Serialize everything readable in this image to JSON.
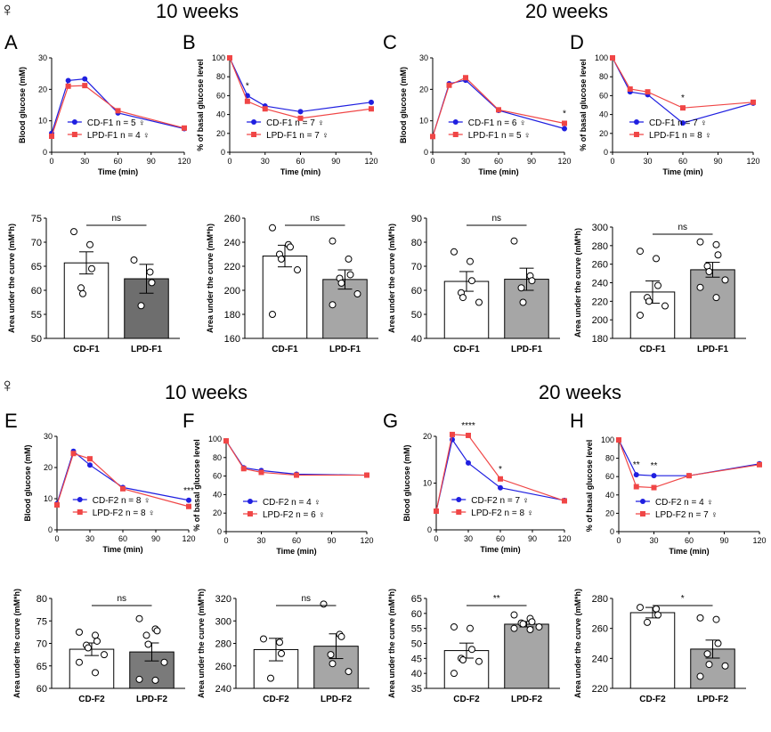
{
  "section_titles": {
    "top_left": "10 weeks",
    "top_right": "20 weeks",
    "bottom_left": "10 weeks",
    "bottom_right": "20 weeks",
    "sex_symbol": "♀"
  },
  "colors": {
    "cd": "#1f1fe0",
    "lpd": "#f04646",
    "bar_cd": "#ffffff",
    "bar_lpd_F1A": "#6e6e6e",
    "bar_lpd_other": "#a6a6a6",
    "bar_lpd_F2A": "#7a7a7a"
  },
  "chart_data": [
    {
      "id": "A",
      "letter": "A",
      "type": "line",
      "xlabel": "Time (min)",
      "ylabel": "Blood glucose (mM)",
      "x": [
        0,
        15,
        30,
        60,
        120
      ],
      "xticks": [
        0,
        30,
        60,
        90,
        120
      ],
      "ylim": [
        0,
        30
      ],
      "yticks": [
        0,
        10,
        20,
        30
      ],
      "series": [
        {
          "name": "CD-F1",
          "n": "n = 5 ♀",
          "values": [
            6.0,
            22.8,
            23.3,
            12.5,
            7.5
          ]
        },
        {
          "name": "LPD-F1",
          "n": "n = 4 ♀",
          "values": [
            5.1,
            21.0,
            21.2,
            13.2,
            7.7
          ]
        }
      ],
      "annotations": [],
      "legend": "bottom"
    },
    {
      "id": "B",
      "letter": "B",
      "type": "line",
      "xlabel": "Time (min)",
      "ylabel": "% of basal glucose level",
      "x": [
        0,
        15,
        30,
        60,
        120
      ],
      "xticks": [
        0,
        30,
        60,
        90,
        120
      ],
      "ylim": [
        0,
        100
      ],
      "yticks": [
        0,
        20,
        40,
        60,
        80,
        100
      ],
      "series": [
        {
          "name": "CD-F1",
          "n": "n = 7 ♀",
          "values": [
            100,
            60,
            49,
            43,
            53
          ]
        },
        {
          "name": "LPD-F1",
          "n": "n = 7 ♀",
          "values": [
            100,
            54,
            46,
            36,
            46
          ]
        }
      ],
      "annotations": [
        {
          "x": 15,
          "text": "*"
        }
      ],
      "legend": "bottom"
    },
    {
      "id": "C",
      "letter": "C",
      "type": "line",
      "xlabel": "Time (min)",
      "ylabel": "Blood glucose (mM)",
      "x": [
        0,
        15,
        30,
        60,
        120
      ],
      "xticks": [
        0,
        30,
        60,
        90,
        120
      ],
      "ylim": [
        0,
        30
      ],
      "yticks": [
        0,
        10,
        20,
        30
      ],
      "series": [
        {
          "name": "CD-F1",
          "n": "n = 6 ♀",
          "values": [
            5.0,
            21.8,
            22.9,
            13.3,
            7.5
          ]
        },
        {
          "name": "LPD-F1",
          "n": "n = 5 ♀",
          "values": [
            5.0,
            21.3,
            23.7,
            13.5,
            9.2
          ]
        }
      ],
      "annotations": [
        {
          "x": 120,
          "text": "*"
        }
      ],
      "legend": "bottom"
    },
    {
      "id": "D",
      "letter": "D",
      "type": "line",
      "xlabel": "Time (min)",
      "ylabel": "% of basal glucose level",
      "x": [
        0,
        15,
        30,
        60,
        120
      ],
      "xticks": [
        0,
        30,
        60,
        90,
        120
      ],
      "ylim": [
        0,
        100
      ],
      "yticks": [
        0,
        20,
        40,
        60,
        80,
        100
      ],
      "series": [
        {
          "name": "CD-F1",
          "n": "n = 7 ♀",
          "values": [
            100,
            64,
            61,
            31,
            52
          ]
        },
        {
          "name": "LPD-F1",
          "n": "n = 8 ♀",
          "values": [
            100,
            67,
            64,
            47,
            53
          ]
        }
      ],
      "annotations": [
        {
          "x": 60,
          "text": "*"
        }
      ],
      "legend": "bottom"
    },
    {
      "id": "E",
      "letter": "E",
      "type": "line",
      "xlabel": "Time (min)",
      "ylabel": "Blood glucose (mM)",
      "x": [
        0,
        15,
        30,
        60,
        120
      ],
      "xticks": [
        0,
        30,
        60,
        90,
        120
      ],
      "ylim": [
        0,
        30
      ],
      "yticks": [
        0,
        10,
        20,
        30
      ],
      "series": [
        {
          "name": "CD-F2",
          "n": "n = 8 ♀",
          "values": [
            8.4,
            25.2,
            20.8,
            13.6,
            9.5
          ]
        },
        {
          "name": "LPD-F2",
          "n": "n = 8 ♀",
          "values": [
            8.0,
            24.5,
            22.8,
            13.2,
            7.5
          ]
        }
      ],
      "annotations": [
        {
          "x": 120,
          "text": "***"
        }
      ],
      "legend": "bottom"
    },
    {
      "id": "F",
      "letter": "F",
      "type": "line",
      "xlabel": "Time (min)",
      "ylabel": "% of basal glucose level",
      "x": [
        0,
        15,
        30,
        60,
        120
      ],
      "xticks": [
        0,
        30,
        60,
        90,
        120
      ],
      "ylim": [
        0,
        100
      ],
      "yticks": [
        0,
        20,
        40,
        60,
        80,
        100
      ],
      "series": [
        {
          "name": "CD-F2",
          "n": "n = 4 ♀",
          "values": [
            98,
            69,
            66,
            62,
            61
          ]
        },
        {
          "name": "LPD-F2",
          "n": "n = 6 ♀",
          "values": [
            98,
            68,
            64,
            61,
            61
          ]
        }
      ],
      "annotations": [],
      "legend": "bottom"
    },
    {
      "id": "G",
      "letter": "G",
      "type": "line",
      "xlabel": "Time (min)",
      "ylabel": "Blood glucose (mM)",
      "x": [
        0,
        15,
        30,
        60,
        120
      ],
      "xticks": [
        0,
        30,
        60,
        90,
        120
      ],
      "ylim": [
        0,
        20
      ],
      "yticks": [
        0,
        10,
        20
      ],
      "series": [
        {
          "name": "CD-F2",
          "n": "n = 7 ♀",
          "values": [
            4.0,
            19.3,
            14.3,
            9.0,
            6.3
          ]
        },
        {
          "name": "LPD-F2",
          "n": "n = 8 ♀",
          "values": [
            4.0,
            20.4,
            20.2,
            10.9,
            6.2
          ]
        }
      ],
      "annotations": [
        {
          "x": 30,
          "text": "****"
        },
        {
          "x": 60,
          "text": "*"
        }
      ],
      "legend": "bottom"
    },
    {
      "id": "H",
      "letter": "H",
      "type": "line",
      "xlabel": "Time (min)",
      "ylabel": "% of basal glucose level",
      "x": [
        0,
        15,
        30,
        60,
        120
      ],
      "xticks": [
        0,
        30,
        60,
        90,
        120
      ],
      "ylim": [
        0,
        100
      ],
      "yticks": [
        0,
        20,
        40,
        60,
        80,
        100
      ],
      "series": [
        {
          "name": "CD-F2",
          "n": "n = 4 ♀",
          "values": [
            100,
            62,
            61,
            61,
            74
          ]
        },
        {
          "name": "LPD-F2",
          "n": "n = 7 ♀",
          "values": [
            100,
            49,
            48,
            61,
            73
          ]
        }
      ],
      "annotations": [
        {
          "x": 15,
          "text": "**"
        },
        {
          "x": 30,
          "text": "**"
        }
      ],
      "legend": "bottom"
    },
    {
      "id": "A2",
      "type": "bar",
      "ylabel": "Area under the curve (mM*h)",
      "categories": [
        "CD-F1",
        "LPD-F1"
      ],
      "values": [
        65.7,
        62.4
      ],
      "errors": [
        2.3,
        3.0
      ],
      "ylim": [
        50,
        75
      ],
      "yticks": [
        50,
        55,
        60,
        65,
        70,
        75
      ],
      "sig": "ns",
      "points": [
        [
          72.2,
          69.5,
          64.5,
          60.5,
          59.3
        ],
        [
          66.3,
          63.8,
          61.6,
          56.8
        ]
      ]
    },
    {
      "id": "B2",
      "type": "bar",
      "ylabel": "Area under the curve (mM*h)",
      "categories": [
        "CD-F1",
        "LPD-F1"
      ],
      "values": [
        228.5,
        209
      ],
      "errors": [
        9,
        8
      ],
      "ylim": [
        160,
        260
      ],
      "yticks": [
        160,
        180,
        200,
        220,
        240,
        260
      ],
      "sig": "ns",
      "points": [
        [
          252,
          238,
          236,
          230,
          226,
          217,
          180
        ],
        [
          241,
          226,
          213,
          210,
          206,
          197,
          188
        ]
      ]
    },
    {
      "id": "C2",
      "type": "bar",
      "ylabel": "Area under the curve (mM*h)",
      "categories": [
        "CD-F1",
        "LPD-F1"
      ],
      "values": [
        63.7,
        64.6
      ],
      "errors": [
        4.1,
        4.6
      ],
      "ylim": [
        40,
        90
      ],
      "yticks": [
        40,
        50,
        60,
        70,
        80,
        90
      ],
      "sig": "ns",
      "points": [
        [
          76,
          72,
          64,
          59,
          57,
          55
        ],
        [
          80.5,
          66,
          64,
          61,
          55
        ]
      ]
    },
    {
      "id": "D2",
      "type": "bar",
      "ylabel": "Area under the curve (mM*h)",
      "categories": [
        "CD-F1",
        "LPD-F1"
      ],
      "values": [
        230,
        254
      ],
      "errors": [
        12,
        8
      ],
      "ylim": [
        180,
        300
      ],
      "yticks": [
        180,
        200,
        220,
        240,
        260,
        280,
        300
      ],
      "sig": "ns",
      "points": [
        [
          274,
          266,
          237,
          224,
          220,
          215,
          205
        ],
        [
          284,
          281,
          270,
          258,
          252,
          243,
          235,
          224
        ]
      ]
    },
    {
      "id": "E2",
      "type": "bar",
      "ylabel": "Area under the curve (mM*h)",
      "categories": [
        "CD-F2",
        "LPD-F2"
      ],
      "values": [
        68.7,
        68.1
      ],
      "errors": [
        1.4,
        2.0
      ],
      "ylim": [
        60,
        80
      ],
      "yticks": [
        60,
        65,
        70,
        75,
        80
      ],
      "sig": "ns",
      "points": [
        [
          72.5,
          71.8,
          70.5,
          69.6,
          69,
          67.5,
          65.8,
          63.5
        ],
        [
          75.5,
          73.2,
          72.8,
          71.8,
          69.8,
          65.8,
          62,
          61.8
        ]
      ]
    },
    {
      "id": "F2",
      "type": "bar",
      "ylabel": "Area under the curve (mM*h)",
      "categories": [
        "CD-F2",
        "LPD-F2"
      ],
      "values": [
        274.5,
        277.5
      ],
      "errors": [
        10,
        11
      ],
      "ylim": [
        240,
        320
      ],
      "yticks": [
        240,
        260,
        280,
        300,
        320
      ],
      "sig": "ns",
      "points": [
        [
          284,
          281,
          271,
          249
        ],
        [
          315,
          288,
          286,
          270,
          262,
          255
        ]
      ]
    },
    {
      "id": "G2",
      "type": "bar",
      "ylabel": "Area under the curve (mM*h)",
      "categories": [
        "CD-F2",
        "LPD-F2"
      ],
      "values": [
        47.6,
        56.4
      ],
      "errors": [
        2.5,
        0.9
      ],
      "ylim": [
        35,
        65
      ],
      "yticks": [
        35,
        40,
        45,
        50,
        55,
        60,
        65
      ],
      "sig": "**",
      "points": [
        [
          55.5,
          55,
          48,
          45,
          44.5,
          44,
          40
        ],
        [
          59.5,
          58.3,
          57.2,
          56.8,
          56.5,
          55.5,
          55,
          54.6
        ]
      ]
    },
    {
      "id": "H2",
      "type": "bar",
      "ylabel": "Area under the curve (mM*h)",
      "categories": [
        "CD-F2",
        "LPD-F2"
      ],
      "values": [
        270.5,
        246.2
      ],
      "errors": [
        3.5,
        6
      ],
      "ylim": [
        220,
        280
      ],
      "yticks": [
        220,
        240,
        260,
        280
      ],
      "sig": "*",
      "points": [
        [
          274,
          273,
          269,
          264
        ],
        [
          267,
          266,
          250,
          243,
          236,
          235,
          228
        ]
      ]
    }
  ]
}
